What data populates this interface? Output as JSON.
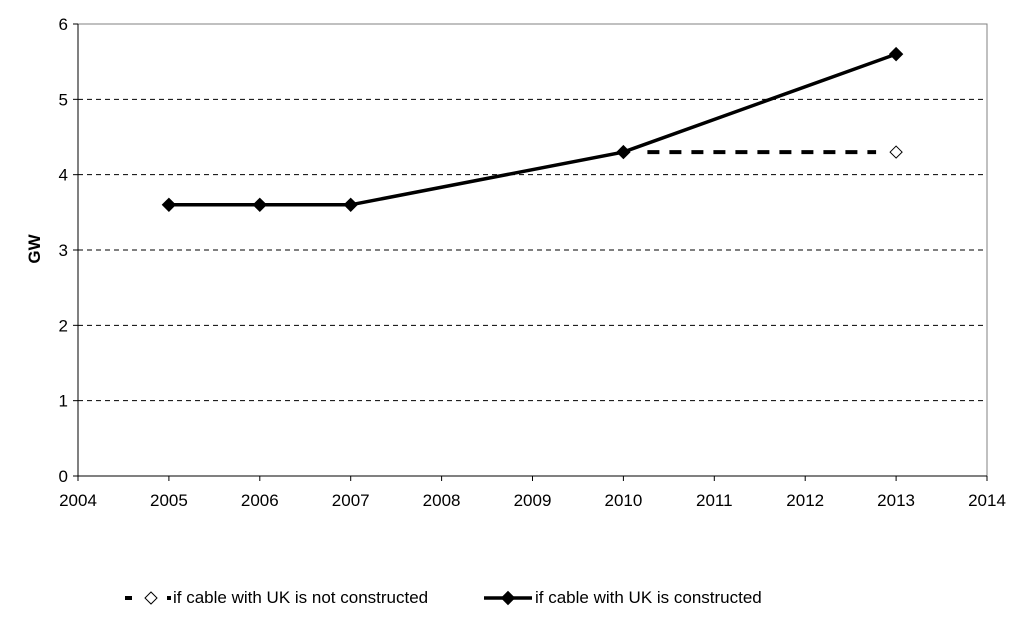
{
  "chart_data": {
    "type": "line",
    "title": "",
    "xlabel": "",
    "ylabel": "GW",
    "xlim": [
      2004,
      2014
    ],
    "ylim": [
      0,
      6
    ],
    "xticks": [
      2004,
      2005,
      2006,
      2007,
      2008,
      2009,
      2010,
      2011,
      2012,
      2013,
      2014
    ],
    "yticks": [
      0,
      1,
      2,
      3,
      4,
      5,
      6
    ],
    "grid": "horizontal dashed",
    "legend_position": "bottom",
    "series": [
      {
        "name": "if cable with UK is not constructed",
        "style": "dashed",
        "marker": "hollow-diamond",
        "color": "#000000",
        "x": [
          2010,
          2013
        ],
        "y": [
          4.3,
          4.3
        ]
      },
      {
        "name": "if cable with UK is constructed",
        "style": "solid",
        "marker": "filled-diamond",
        "color": "#000000",
        "x": [
          2005,
          2006,
          2007,
          2010,
          2013
        ],
        "y": [
          3.6,
          3.6,
          3.6,
          4.3,
          5.6
        ]
      }
    ]
  }
}
